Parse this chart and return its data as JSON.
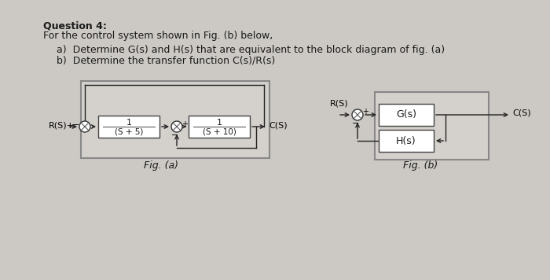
{
  "bg_color": "#ccc9c4",
  "text_color": "#1a1a1a",
  "title_bold": "Question 4:",
  "title_text": "For the control system shown in Fig. (b) below,",
  "item_a": "a)  Determine G(s) and H(s) that are equivalent to the block diagram of fig. (a)",
  "item_b": "b)  Determine the transfer function C(s)/R(s)",
  "fig_a_label": "Fig. (a)",
  "fig_b_label": "Fig. (b)",
  "block1_num": "1",
  "block1_den": "(S + 5)",
  "block2_num": "1",
  "block2_den": "(S + 10)",
  "block_Gs": "G(s)",
  "block_Hs": "H(s)",
  "Rs_left": "R(S)+",
  "Rs_right": "R(S)",
  "Cs_left": "C(S)",
  "Cs_right": "C(S)"
}
